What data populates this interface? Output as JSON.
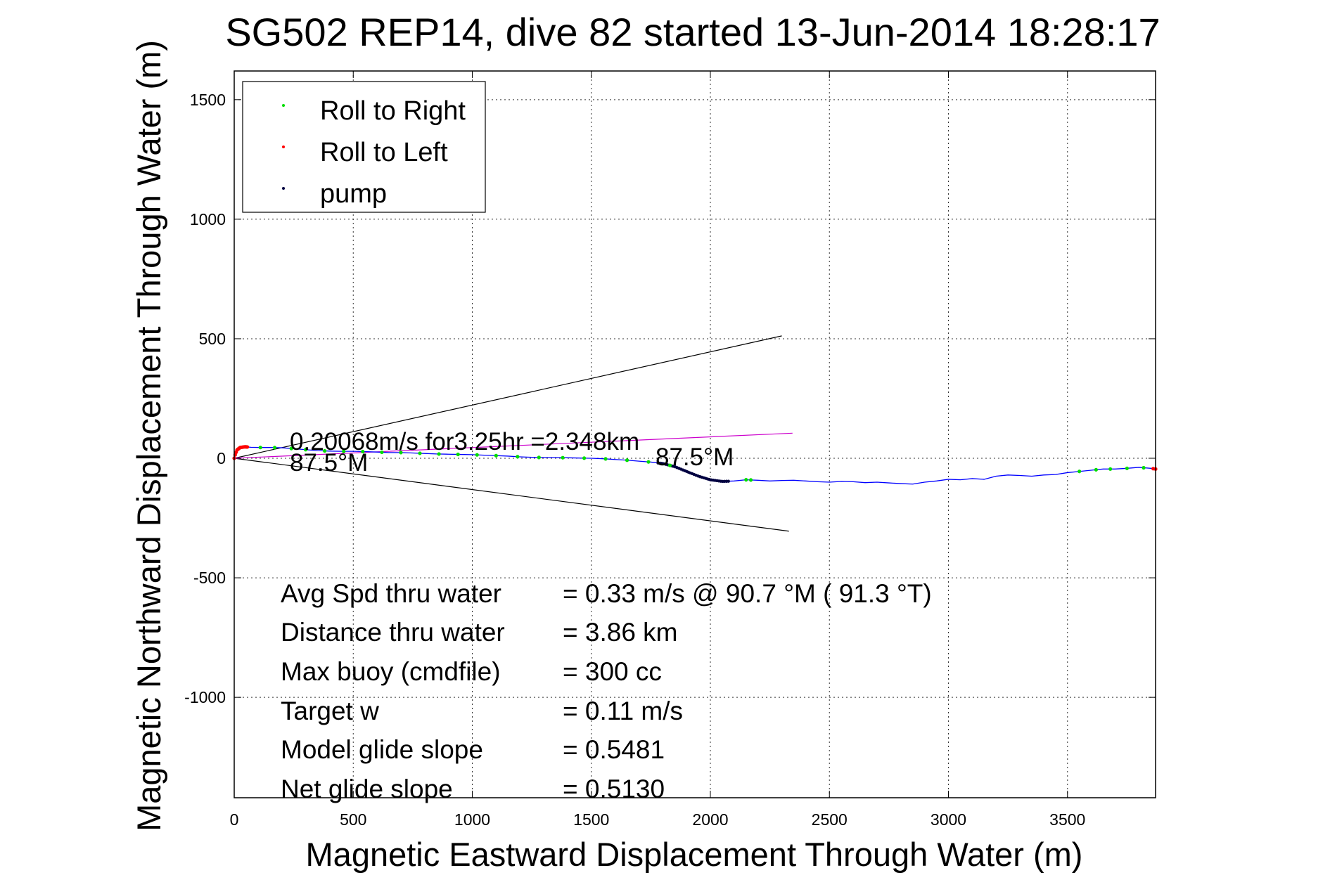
{
  "chart_data": {
    "type": "scatter",
    "title": "SG502 REP14, dive 82 started 13-Jun-2014 18:28:17",
    "xlabel": "Magnetic Eastward Displacement Through Water (m)",
    "ylabel": "Magnetic Northward Displacement Through Water (m)",
    "xlim": [
      0,
      3870
    ],
    "ylim": [
      -1420,
      1620
    ],
    "xticks": [
      0,
      500,
      1000,
      1500,
      2000,
      2500,
      3000,
      3500
    ],
    "yticks": [
      -1000,
      -500,
      0,
      500,
      1000,
      1500
    ],
    "grid": true,
    "legend_position": "top-left",
    "legend": [
      {
        "label": "Roll to Right",
        "color": "#00dd00"
      },
      {
        "label": "Roll to Left",
        "color": "#ff0000"
      },
      {
        "label": "pump",
        "color": "#000040"
      }
    ],
    "track": {
      "color": "#0000ff",
      "points": [
        [
          0,
          0
        ],
        [
          5,
          18
        ],
        [
          12,
          35
        ],
        [
          25,
          45
        ],
        [
          45,
          48
        ],
        [
          70,
          46
        ],
        [
          110,
          45
        ],
        [
          150,
          45
        ],
        [
          200,
          44
        ],
        [
          250,
          40
        ],
        [
          300,
          36
        ],
        [
          350,
          32
        ],
        [
          400,
          30
        ],
        [
          450,
          29
        ],
        [
          500,
          29
        ],
        [
          550,
          28
        ],
        [
          600,
          26
        ],
        [
          650,
          24
        ],
        [
          700,
          24
        ],
        [
          750,
          22
        ],
        [
          800,
          20
        ],
        [
          850,
          18
        ],
        [
          900,
          17
        ],
        [
          950,
          16
        ],
        [
          1000,
          15
        ],
        [
          1050,
          13
        ],
        [
          1100,
          11
        ],
        [
          1150,
          9
        ],
        [
          1200,
          6
        ],
        [
          1250,
          4
        ],
        [
          1300,
          3
        ],
        [
          1350,
          3
        ],
        [
          1400,
          2
        ],
        [
          1450,
          1
        ],
        [
          1500,
          0
        ],
        [
          1550,
          -2
        ],
        [
          1600,
          -5
        ],
        [
          1650,
          -8
        ],
        [
          1700,
          -12
        ],
        [
          1750,
          -16
        ],
        [
          1800,
          -22
        ],
        [
          1850,
          -35
        ],
        [
          1900,
          -55
        ],
        [
          1950,
          -75
        ],
        [
          2000,
          -90
        ],
        [
          2050,
          -97
        ],
        [
          2100,
          -95
        ],
        [
          2150,
          -90
        ],
        [
          2200,
          -92
        ],
        [
          2250,
          -95
        ],
        [
          2300,
          -93
        ],
        [
          2350,
          -92
        ],
        [
          2400,
          -95
        ],
        [
          2450,
          -98
        ],
        [
          2500,
          -100
        ],
        [
          2550,
          -97
        ],
        [
          2600,
          -98
        ],
        [
          2650,
          -102
        ],
        [
          2700,
          -100
        ],
        [
          2750,
          -103
        ],
        [
          2800,
          -106
        ],
        [
          2850,
          -108
        ],
        [
          2900,
          -100
        ],
        [
          2950,
          -95
        ],
        [
          3000,
          -88
        ],
        [
          3050,
          -90
        ],
        [
          3100,
          -85
        ],
        [
          3150,
          -88
        ],
        [
          3200,
          -75
        ],
        [
          3250,
          -70
        ],
        [
          3300,
          -72
        ],
        [
          3350,
          -75
        ],
        [
          3400,
          -70
        ],
        [
          3450,
          -68
        ],
        [
          3500,
          -60
        ],
        [
          3550,
          -55
        ],
        [
          3600,
          -50
        ],
        [
          3650,
          -45
        ],
        [
          3700,
          -45
        ],
        [
          3750,
          -42
        ],
        [
          3800,
          -38
        ],
        [
          3850,
          -42
        ],
        [
          3870,
          -45
        ]
      ]
    },
    "roll_right_x": [
      20,
      50,
      110,
      170,
      240,
      300,
      380,
      460,
      540,
      620,
      700,
      780,
      860,
      940,
      1020,
      1100,
      1190,
      1280,
      1380,
      1470,
      1560,
      1650,
      1740,
      1830,
      2150,
      2170,
      3550,
      3620,
      3680,
      3750,
      3820
    ],
    "roll_left_x": [
      0,
      4,
      8,
      12,
      16,
      20,
      25,
      30,
      35,
      40,
      45,
      50,
      55,
      3860,
      3870
    ],
    "pump_range": [
      1780,
      2080
    ],
    "wedge": [
      {
        "end": [
          2300,
          512
        ]
      },
      {
        "end": [
          2330,
          -305
        ]
      }
    ],
    "avg_line": {
      "end": [
        2345,
        105
      ],
      "color": "#cc00cc"
    },
    "annotations": {
      "speed": "0.20068m/s for3.25hr =2.348km",
      "heading_1": "87.5°M",
      "heading_2": "87.5°M"
    },
    "stats": [
      {
        "label": "Avg Spd thru water",
        "value": "=  0.33 m/s @  90.7 °M ( 91.3 °T)"
      },
      {
        "label": "Distance thru water",
        "value": "=  3.86 km"
      },
      {
        "label": "Max buoy (cmdfile)",
        "value": "= 300 cc"
      },
      {
        "label": "Target w",
        "value": "= 0.11 m/s"
      },
      {
        "label": "Model glide slope",
        "value": "= 0.5481"
      },
      {
        "label": "Net glide slope",
        "value": "= 0.5130"
      }
    ]
  }
}
